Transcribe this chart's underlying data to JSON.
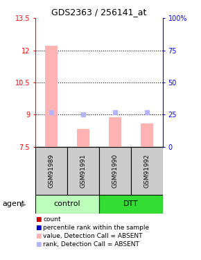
{
  "title": "GDS2363 / 256141_at",
  "samples": [
    "GSM91989",
    "GSM91991",
    "GSM91990",
    "GSM91992"
  ],
  "groups": [
    "control",
    "control",
    "DTT",
    "DTT"
  ],
  "bar_values": [
    12.2,
    8.35,
    8.9,
    8.6
  ],
  "rank_values": [
    9.1,
    9.0,
    9.1,
    9.1
  ],
  "bar_color_absent": "#ffb3b3",
  "rank_color_absent": "#b3b3ff",
  "bar_bottom": 7.5,
  "ylim_left": [
    7.5,
    13.5
  ],
  "ylim_right": [
    0,
    100
  ],
  "yticks_left": [
    7.5,
    9.0,
    10.5,
    12.0,
    13.5
  ],
  "ytick_labels_left": [
    "7.5",
    "9",
    "10.5",
    "12",
    "13.5"
  ],
  "yticks_right": [
    0,
    25,
    50,
    75,
    100
  ],
  "ytick_labels_right": [
    "0",
    "25",
    "50",
    "75",
    "100%"
  ],
  "hlines": [
    9.0,
    10.5,
    12.0
  ],
  "group_colors": {
    "control": "#bbffbb",
    "DTT": "#33dd33"
  },
  "sample_box_color": "#cccccc",
  "legend_items": [
    {
      "color": "#cc0000",
      "label": "count"
    },
    {
      "color": "#0000cc",
      "label": "percentile rank within the sample"
    },
    {
      "color": "#ffb3b3",
      "label": "value, Detection Call = ABSENT"
    },
    {
      "color": "#b3b3ff",
      "label": "rank, Detection Call = ABSENT"
    }
  ]
}
